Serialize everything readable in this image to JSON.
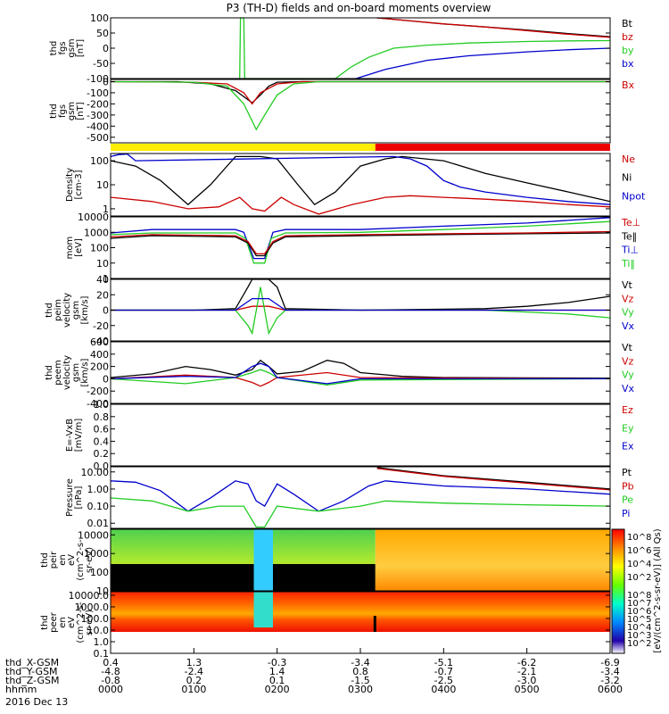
{
  "chart_data": {
    "type": "line",
    "title": "P3 (TH-D) fields and on-board moments overview",
    "date_label": "2016 Dec 13",
    "x_rows": [
      {
        "label": "thd_X-GSM",
        "values": [
          "0.4",
          "1.3",
          "-0.3",
          "-3.4",
          "-5.1",
          "-6.2",
          "-6.9"
        ]
      },
      {
        "label": "thd_Y-GSM",
        "values": [
          "-4.8",
          "-2.4",
          "1.4",
          "0.8",
          "-0.7",
          "-2.1",
          "-3.4"
        ]
      },
      {
        "label": "thd_Z-GSM",
        "values": [
          "-0.8",
          "0.2",
          "0.1",
          "-1.5",
          "-2.5",
          "-3.0",
          "-3.2"
        ]
      },
      {
        "label": "hhmm",
        "values": [
          "0000",
          "0100",
          "0200",
          "0300",
          "0400",
          "0500",
          "0600"
        ]
      }
    ],
    "panels": [
      {
        "id": "fgs",
        "ylabel_lines": [
          "thd",
          "fgs",
          "gsm",
          "[nT]"
        ],
        "ticks": [
          "100",
          "50",
          "0",
          "-50",
          "-100"
        ],
        "ylim": [
          -100,
          100
        ],
        "legend": [
          {
            "name": "Bt",
            "color": "#000000"
          },
          {
            "name": "bz",
            "color": "#cc0000"
          },
          {
            "name": "by",
            "color": "#22cc22"
          },
          {
            "name": "bx",
            "color": "#0000cc"
          }
        ]
      },
      {
        "id": "fgs2",
        "ylabel_lines": [
          "thd",
          "fgs",
          "gsm",
          "[nT]"
        ],
        "ticks": [
          "0",
          "-100",
          "-200",
          "-300",
          "-400",
          "-500"
        ],
        "ylim": [
          -550,
          20
        ],
        "legend": [
          {
            "name": "Bx",
            "color": "#cc0000"
          }
        ]
      },
      {
        "id": "density",
        "ylabel_lines": [
          "Density",
          "[cm-3]"
        ],
        "ticks": [
          "100",
          "10",
          "1"
        ],
        "ylim": [
          0.5,
          200
        ],
        "legend": [
          {
            "name": "Ne",
            "color": "#cc0000"
          },
          {
            "name": "Ni",
            "color": "#000000"
          },
          {
            "name": "Npot",
            "color": "#0000cc"
          }
        ]
      },
      {
        "id": "temp",
        "ylabel_lines": [
          "mom",
          "[eV]"
        ],
        "ticks": [
          "10000",
          "1000",
          "100",
          "10",
          "1"
        ],
        "ylim": [
          1,
          10000
        ],
        "legend": [
          {
            "name": "Te⊥",
            "color": "#cc0000"
          },
          {
            "name": "Te‖",
            "color": "#000000"
          },
          {
            "name": "Ti⊥",
            "color": "#0000cc"
          },
          {
            "name": "Ti‖",
            "color": "#22cc22"
          }
        ]
      },
      {
        "id": "peim",
        "ylabel_lines": [
          "thd",
          "peim",
          "velocity",
          "gsm",
          "[km/s]"
        ],
        "ticks": [
          "40",
          "20",
          "0",
          "-20",
          "-40"
        ],
        "ylim": [
          -40,
          40
        ],
        "legend": [
          {
            "name": "Vt",
            "color": "#000000"
          },
          {
            "name": "Vz",
            "color": "#cc0000"
          },
          {
            "name": "Vy",
            "color": "#22cc22"
          },
          {
            "name": "Vx",
            "color": "#0000cc"
          }
        ]
      },
      {
        "id": "peem",
        "ylabel_lines": [
          "thd",
          "peem",
          "velocity",
          "gsm",
          "[km/s]"
        ],
        "ticks": [
          "600",
          "400",
          "200",
          "0",
          "-200",
          "-400"
        ],
        "ylim": [
          -400,
          600
        ],
        "legend": [
          {
            "name": "Vt",
            "color": "#000000"
          },
          {
            "name": "Vz",
            "color": "#cc0000"
          },
          {
            "name": "Vy",
            "color": "#22cc22"
          },
          {
            "name": "Vx",
            "color": "#0000cc"
          }
        ]
      },
      {
        "id": "efield",
        "ylabel_lines": [
          "E=-VxB",
          "[mV/m]"
        ],
        "ticks": [
          "1.0",
          "0.8",
          "0.6",
          "0.4",
          "0.2",
          "0.0"
        ],
        "ylim": [
          0,
          1
        ],
        "legend": [
          {
            "name": "Ez",
            "color": "#cc0000"
          },
          {
            "name": "Ey",
            "color": "#22cc22"
          },
          {
            "name": "Ex",
            "color": "#0000cc"
          }
        ]
      },
      {
        "id": "pressure",
        "ylabel_lines": [
          "Pressure",
          "[nPa]"
        ],
        "ticks": [
          "10.00",
          "1.00",
          "0.10",
          "0.01"
        ],
        "ylim": [
          0.005,
          20
        ],
        "legend": [
          {
            "name": "Pt",
            "color": "#000000"
          },
          {
            "name": "Pb",
            "color": "#cc0000"
          },
          {
            "name": "Pe",
            "color": "#22cc22"
          },
          {
            "name": "Pi",
            "color": "#0000cc"
          }
        ]
      },
      {
        "id": "peir",
        "ylabel_lines": [
          "thd",
          "peir",
          "en",
          "eV",
          "(cm^2-s-",
          "sr-eV)"
        ],
        "ticks": [
          "10000",
          "1000",
          "100",
          "10"
        ],
        "ylim": [
          10,
          20000
        ],
        "legend": []
      },
      {
        "id": "peer",
        "ylabel_lines": [
          "thd",
          "peer",
          "en",
          "eV",
          "(cm^2-s-",
          "sr-eV)"
        ],
        "ticks": [
          "10000.0",
          "1000.0",
          "100.0",
          "10.0",
          "1.0",
          "0.1"
        ],
        "ylim": [
          0.1,
          20000
        ],
        "legend": []
      }
    ],
    "colorbar": {
      "ticks_top": [
        "10^8",
        "10^6",
        "10^4",
        "10^2"
      ],
      "ticks_bottom": [
        "10^8",
        "10^7",
        "10^6",
        "10^5",
        "10^4",
        "10^3",
        "10^2"
      ],
      "label": "[eV/(cm^2-s-sr-eV)] (All Qs)"
    },
    "series": [
      {
        "panel": "fgs",
        "name": "Bt",
        "color": "#000000",
        "x": [
          3.2,
          3.6,
          4.0,
          4.5,
          5.0,
          5.5,
          6.0
        ],
        "y": [
          100,
          90,
          80,
          70,
          60,
          48,
          38
        ]
      },
      {
        "panel": "fgs",
        "name": "bz",
        "color": "#cc0000",
        "x": [
          3.2,
          3.6,
          4.0,
          4.5,
          5.0,
          5.5,
          6.0
        ],
        "y": [
          100,
          90,
          80,
          70,
          58,
          46,
          36
        ]
      },
      {
        "panel": "fgs",
        "name": "by",
        "color": "#22cc22",
        "x": [
          1.55,
          1.56,
          1.6,
          1.61,
          2.7,
          2.9,
          3.1,
          3.4,
          3.8,
          4.3,
          5.0,
          5.5,
          6.0
        ],
        "y": [
          -100,
          100,
          100,
          -100,
          -100,
          -60,
          -30,
          0,
          10,
          17,
          22,
          24,
          25
        ]
      },
      {
        "panel": "fgs",
        "name": "bx",
        "color": "#0000cc",
        "x": [
          2.95,
          3.3,
          3.8,
          4.3,
          5.0,
          5.5,
          6.0
        ],
        "y": [
          -100,
          -70,
          -40,
          -25,
          -12,
          -5,
          0
        ]
      },
      {
        "panel": "fgs2",
        "name": "Bt",
        "color": "#000000",
        "x": [
          0,
          0.8,
          1.2,
          1.5,
          1.7,
          1.8,
          1.9,
          2.0,
          2.3,
          6.0
        ],
        "y": [
          0,
          0,
          -20,
          -80,
          -190,
          -120,
          -40,
          -5,
          0,
          0
        ]
      },
      {
        "panel": "fgs2",
        "name": "Bx",
        "color": "#cc0000",
        "x": [
          0,
          1.0,
          1.4,
          1.6,
          1.7,
          1.8,
          2.0,
          2.3,
          6.0
        ],
        "y": [
          0,
          -5,
          -20,
          -100,
          -200,
          -100,
          -20,
          0,
          0
        ]
      },
      {
        "panel": "fgs2",
        "name": "By",
        "color": "#22cc22",
        "x": [
          0,
          1.0,
          1.4,
          1.6,
          1.75,
          1.85,
          2.0,
          2.2,
          2.5,
          6.0
        ],
        "y": [
          0,
          -5,
          -40,
          -200,
          -430,
          -300,
          -120,
          -20,
          0,
          0
        ]
      },
      {
        "panel": "density",
        "name": "Ni",
        "color": "#000000",
        "x": [
          0,
          0.3,
          0.6,
          0.93,
          1.2,
          1.5,
          1.8,
          2.0,
          2.25,
          2.45,
          2.7,
          3.0,
          3.3,
          3.5,
          4.0,
          4.5,
          5.0,
          5.5,
          6.0
        ],
        "y": [
          100,
          60,
          15,
          1.5,
          10,
          150,
          150,
          120,
          10,
          1.5,
          5,
          60,
          120,
          150,
          100,
          30,
          12,
          5,
          2
        ]
      },
      {
        "panel": "density",
        "name": "Ne",
        "color": "#cc0000",
        "x": [
          0,
          0.5,
          0.93,
          1.3,
          1.55,
          1.7,
          1.85,
          2.05,
          2.2,
          2.5,
          2.9,
          3.3,
          3.6,
          4.0,
          4.5,
          5.0,
          5.5,
          6.0
        ],
        "y": [
          3,
          2,
          1,
          1.2,
          3,
          1,
          0.8,
          3,
          1.5,
          0.6,
          1.5,
          3,
          3.5,
          3,
          2.5,
          2,
          1.5,
          1.2
        ]
      },
      {
        "panel": "density",
        "name": "Npot",
        "color": "#0000cc",
        "x": [
          0,
          0.1,
          0.2,
          0.3,
          3.4,
          3.6,
          3.8,
          4.0,
          4.2,
          4.5,
          5.0,
          5.5,
          6.0
        ],
        "y": [
          150,
          180,
          190,
          100,
          150,
          120,
          60,
          15,
          8,
          5,
          3,
          2,
          1.5
        ]
      },
      {
        "panel": "temp",
        "name": "Ti⊥",
        "color": "#0000cc",
        "x": [
          0,
          0.5,
          1.5,
          1.6,
          1.72,
          1.85,
          1.95,
          2.1,
          3.0,
          4.0,
          5.0,
          6.0
        ],
        "y": [
          900,
          1500,
          1500,
          1000,
          20,
          20,
          1000,
          1500,
          1500,
          2500,
          4000,
          9000
        ]
      },
      {
        "panel": "temp",
        "name": "Ti‖",
        "color": "#22cc22",
        "x": [
          0,
          0.5,
          1.5,
          1.62,
          1.72,
          1.85,
          1.93,
          2.1,
          3.0,
          4.0,
          5.0,
          6.0
        ],
        "y": [
          700,
          900,
          900,
          400,
          10,
          10,
          400,
          900,
          1000,
          1500,
          2500,
          5000
        ]
      },
      {
        "panel": "temp",
        "name": "Te‖",
        "color": "#000000",
        "x": [
          0,
          0.5,
          1.5,
          1.65,
          1.75,
          1.85,
          1.95,
          2.1,
          3.0,
          4.0,
          5.0,
          6.0
        ],
        "y": [
          400,
          600,
          500,
          200,
          30,
          30,
          200,
          500,
          600,
          700,
          800,
          900
        ]
      },
      {
        "panel": "temp",
        "name": "Te⊥",
        "color": "#cc0000",
        "x": [
          0,
          0.5,
          1.5,
          1.65,
          1.75,
          1.85,
          1.95,
          2.1,
          3.0,
          4.0,
          5.0,
          6.0
        ],
        "y": [
          500,
          700,
          600,
          250,
          40,
          40,
          250,
          600,
          700,
          800,
          900,
          1100
        ]
      },
      {
        "panel": "peim",
        "name": "Vt",
        "color": "#000000",
        "x": [
          0,
          1.0,
          1.5,
          1.65,
          1.7,
          1.9,
          2.0,
          2.1,
          3.0,
          4.5,
          5.0,
          5.5,
          6.0
        ],
        "y": [
          0,
          0,
          2,
          30,
          40,
          40,
          30,
          2,
          0,
          2,
          5,
          10,
          18
        ]
      },
      {
        "panel": "peim",
        "name": "Vz",
        "color": "#cc0000",
        "x": [
          0,
          1.5,
          1.7,
          1.9,
          2.1,
          6.0
        ],
        "y": [
          0,
          0,
          5,
          5,
          0,
          0
        ]
      },
      {
        "panel": "peim",
        "name": "Vy",
        "color": "#22cc22",
        "x": [
          0,
          1.5,
          1.65,
          1.7,
          1.8,
          1.9,
          2.0,
          2.1,
          4.5,
          5.5,
          6.0
        ],
        "y": [
          0,
          0,
          -20,
          -30,
          30,
          -30,
          -10,
          0,
          0,
          -5,
          -10
        ]
      },
      {
        "panel": "peim",
        "name": "Vx",
        "color": "#0000cc",
        "x": [
          0,
          1.5,
          1.7,
          1.9,
          2.1,
          6.0
        ],
        "y": [
          0,
          0,
          15,
          15,
          0,
          0
        ]
      },
      {
        "panel": "peem",
        "name": "Vt",
        "color": "#000000",
        "x": [
          0,
          0.5,
          0.9,
          1.2,
          1.5,
          1.7,
          1.8,
          1.9,
          2.0,
          2.3,
          2.6,
          2.8,
          3.0,
          3.5,
          4.0,
          5.0,
          6.0
        ],
        "y": [
          20,
          80,
          200,
          150,
          60,
          150,
          300,
          200,
          80,
          120,
          300,
          250,
          100,
          40,
          20,
          15,
          10
        ]
      },
      {
        "panel": "peem",
        "name": "Vz",
        "color": "#cc0000",
        "x": [
          0,
          0.9,
          1.5,
          1.7,
          1.8,
          1.9,
          2.0,
          2.6,
          3.0,
          6.0
        ],
        "y": [
          0,
          60,
          20,
          -60,
          -120,
          -60,
          20,
          100,
          20,
          0
        ]
      },
      {
        "panel": "peem",
        "name": "Vy",
        "color": "#22cc22",
        "x": [
          0,
          0.9,
          1.5,
          1.7,
          1.8,
          1.9,
          2.0,
          2.6,
          3.0,
          6.0
        ],
        "y": [
          0,
          -80,
          20,
          100,
          150,
          100,
          20,
          -100,
          -20,
          0
        ]
      },
      {
        "panel": "peem",
        "name": "Vx",
        "color": "#0000cc",
        "x": [
          0,
          0.9,
          1.5,
          1.7,
          1.8,
          1.9,
          2.0,
          2.6,
          3.0,
          6.0
        ],
        "y": [
          0,
          40,
          20,
          200,
          250,
          200,
          20,
          -80,
          0,
          0
        ]
      },
      {
        "panel": "pressure",
        "name": "Pt",
        "color": "#000000",
        "x": [
          3.2,
          4.0,
          5.0,
          6.0
        ],
        "y": [
          18,
          6,
          2.5,
          1.0
        ]
      },
      {
        "panel": "pressure",
        "name": "Pb",
        "color": "#cc0000",
        "x": [
          3.2,
          4.0,
          5.0,
          6.0
        ],
        "y": [
          16,
          5.5,
          2.2,
          0.9
        ]
      },
      {
        "panel": "pressure",
        "name": "Pi",
        "color": "#0000cc",
        "x": [
          0,
          0.3,
          0.6,
          0.93,
          1.2,
          1.5,
          1.65,
          1.75,
          1.85,
          2.0,
          2.2,
          2.5,
          2.8,
          3.1,
          3.3,
          4.0,
          5.0,
          6.0
        ],
        "y": [
          3,
          2.5,
          0.8,
          0.05,
          0.3,
          3,
          2,
          0.2,
          0.1,
          2,
          0.5,
          0.05,
          0.2,
          1.5,
          3,
          1.5,
          1.0,
          0.5
        ]
      },
      {
        "panel": "pressure",
        "name": "Pe",
        "color": "#22cc22",
        "x": [
          0,
          0.5,
          0.93,
          1.3,
          1.6,
          1.75,
          1.85,
          2.0,
          2.5,
          3.0,
          3.3,
          4.0,
          5.0,
          6.0
        ],
        "y": [
          0.3,
          0.2,
          0.05,
          0.1,
          0.1,
          0.006,
          0.006,
          0.1,
          0.05,
          0.1,
          0.2,
          0.15,
          0.12,
          0.1
        ]
      }
    ]
  }
}
